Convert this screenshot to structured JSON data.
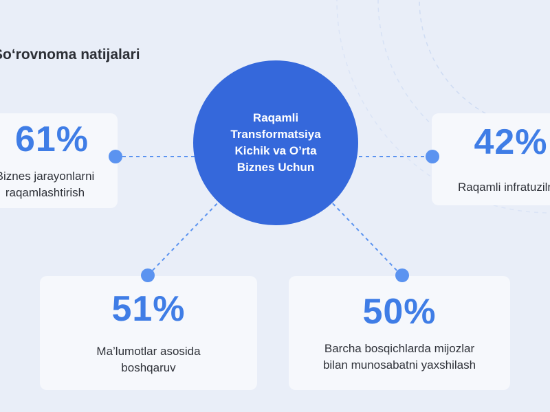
{
  "section_title": "So‘rovnoma natijalari",
  "hub": {
    "label": "Raqamli Transformatsiya Kichik va O’rta Biznes Uchun"
  },
  "cards": {
    "c61": {
      "percent": "61%",
      "label": "Biznes jarayonlarni raqamlashtirish"
    },
    "c42": {
      "percent": "42%",
      "label": "Raqamli infratuzilma"
    },
    "c51": {
      "percent": "51%",
      "label": "Ma’lumotlar asosida boshqaruv"
    },
    "c50": {
      "percent": "50%",
      "label": "Barcha bosqichlarda mijozlar bilan munosabatni yaxshilash"
    }
  },
  "colors": {
    "background": "#e9eef8",
    "hub": "#3568db",
    "accent": "#3f7de6",
    "dot": "#5b93f0",
    "card": "#f6f8fc"
  }
}
